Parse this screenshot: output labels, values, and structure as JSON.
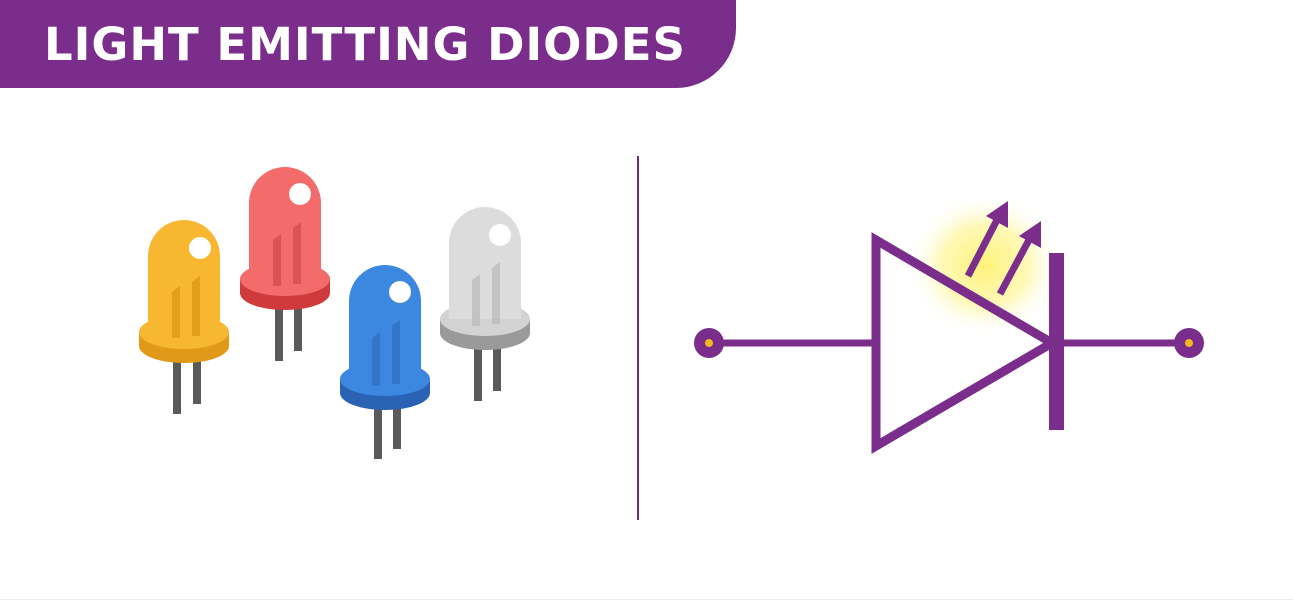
{
  "header": {
    "title": "LIGHT EMITTING DIODES"
  },
  "leds": [
    {
      "name": "yellow",
      "color": "#f7b731"
    },
    {
      "name": "red",
      "color": "#f46b6b"
    },
    {
      "name": "blue",
      "color": "#3c87e0"
    },
    {
      "name": "white",
      "color": "#dcdcdc"
    }
  ],
  "symbol": {
    "color": "#7b2d8b",
    "glow_color": "#fff27a",
    "terminal_dot_color": "#f2b81c"
  },
  "icons": [
    "led-yellow-icon",
    "led-red-icon",
    "led-blue-icon",
    "led-white-icon",
    "led-schematic-symbol-icon"
  ]
}
